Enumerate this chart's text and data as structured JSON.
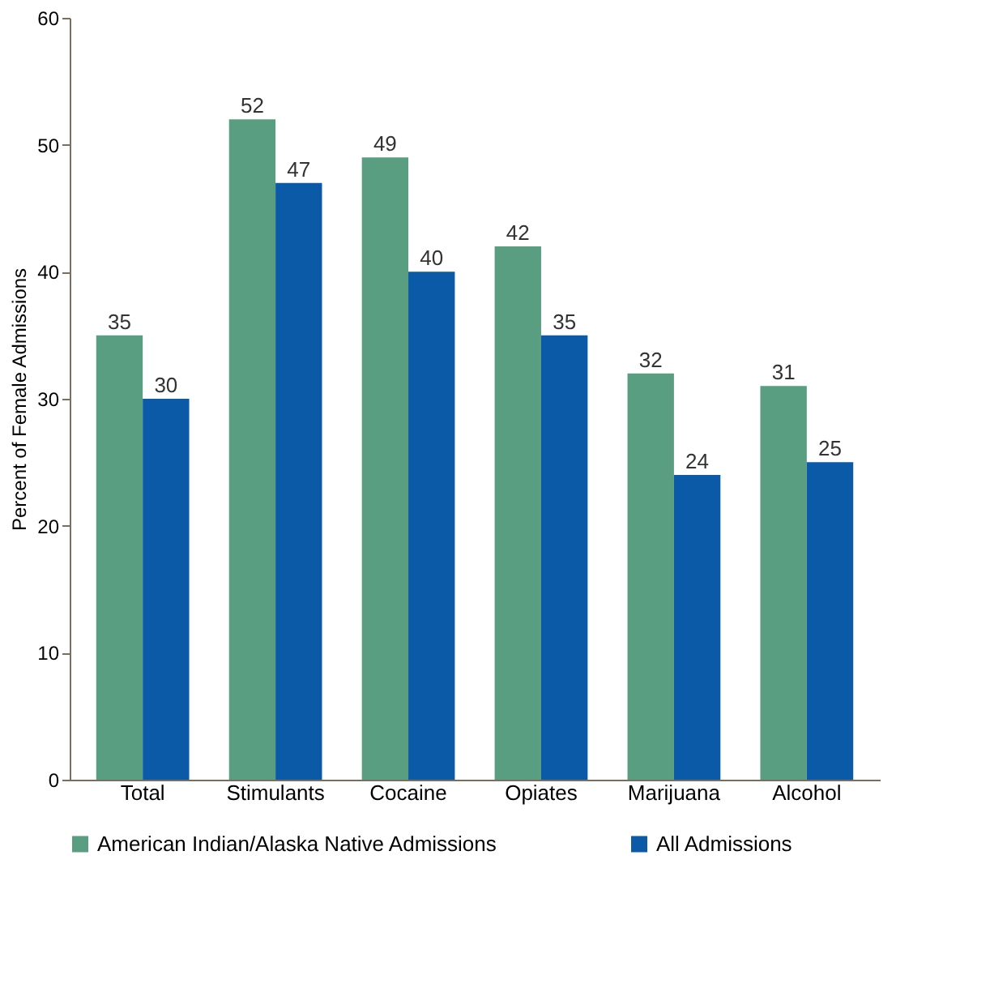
{
  "chart_data": {
    "type": "bar",
    "ylabel": "Percent of Female Admissions",
    "categories": [
      "Total",
      "Stimulants",
      "Cocaine",
      "Opiates",
      "Marijuana",
      "Alcohol"
    ],
    "series": [
      {
        "name": "American Indian/Alaska Native Admissions",
        "color": "#5a9e82",
        "values": [
          35,
          52,
          49,
          42,
          32,
          31
        ]
      },
      {
        "name": "All Admissions",
        "color": "#0a5aa8",
        "values": [
          30,
          47,
          40,
          35,
          24,
          25
        ]
      }
    ],
    "ylim": [
      0,
      60
    ],
    "yticks": [
      0,
      10,
      20,
      30,
      40,
      50,
      60
    ],
    "grid": false,
    "legend": "bottom",
    "data_labels": true
  }
}
